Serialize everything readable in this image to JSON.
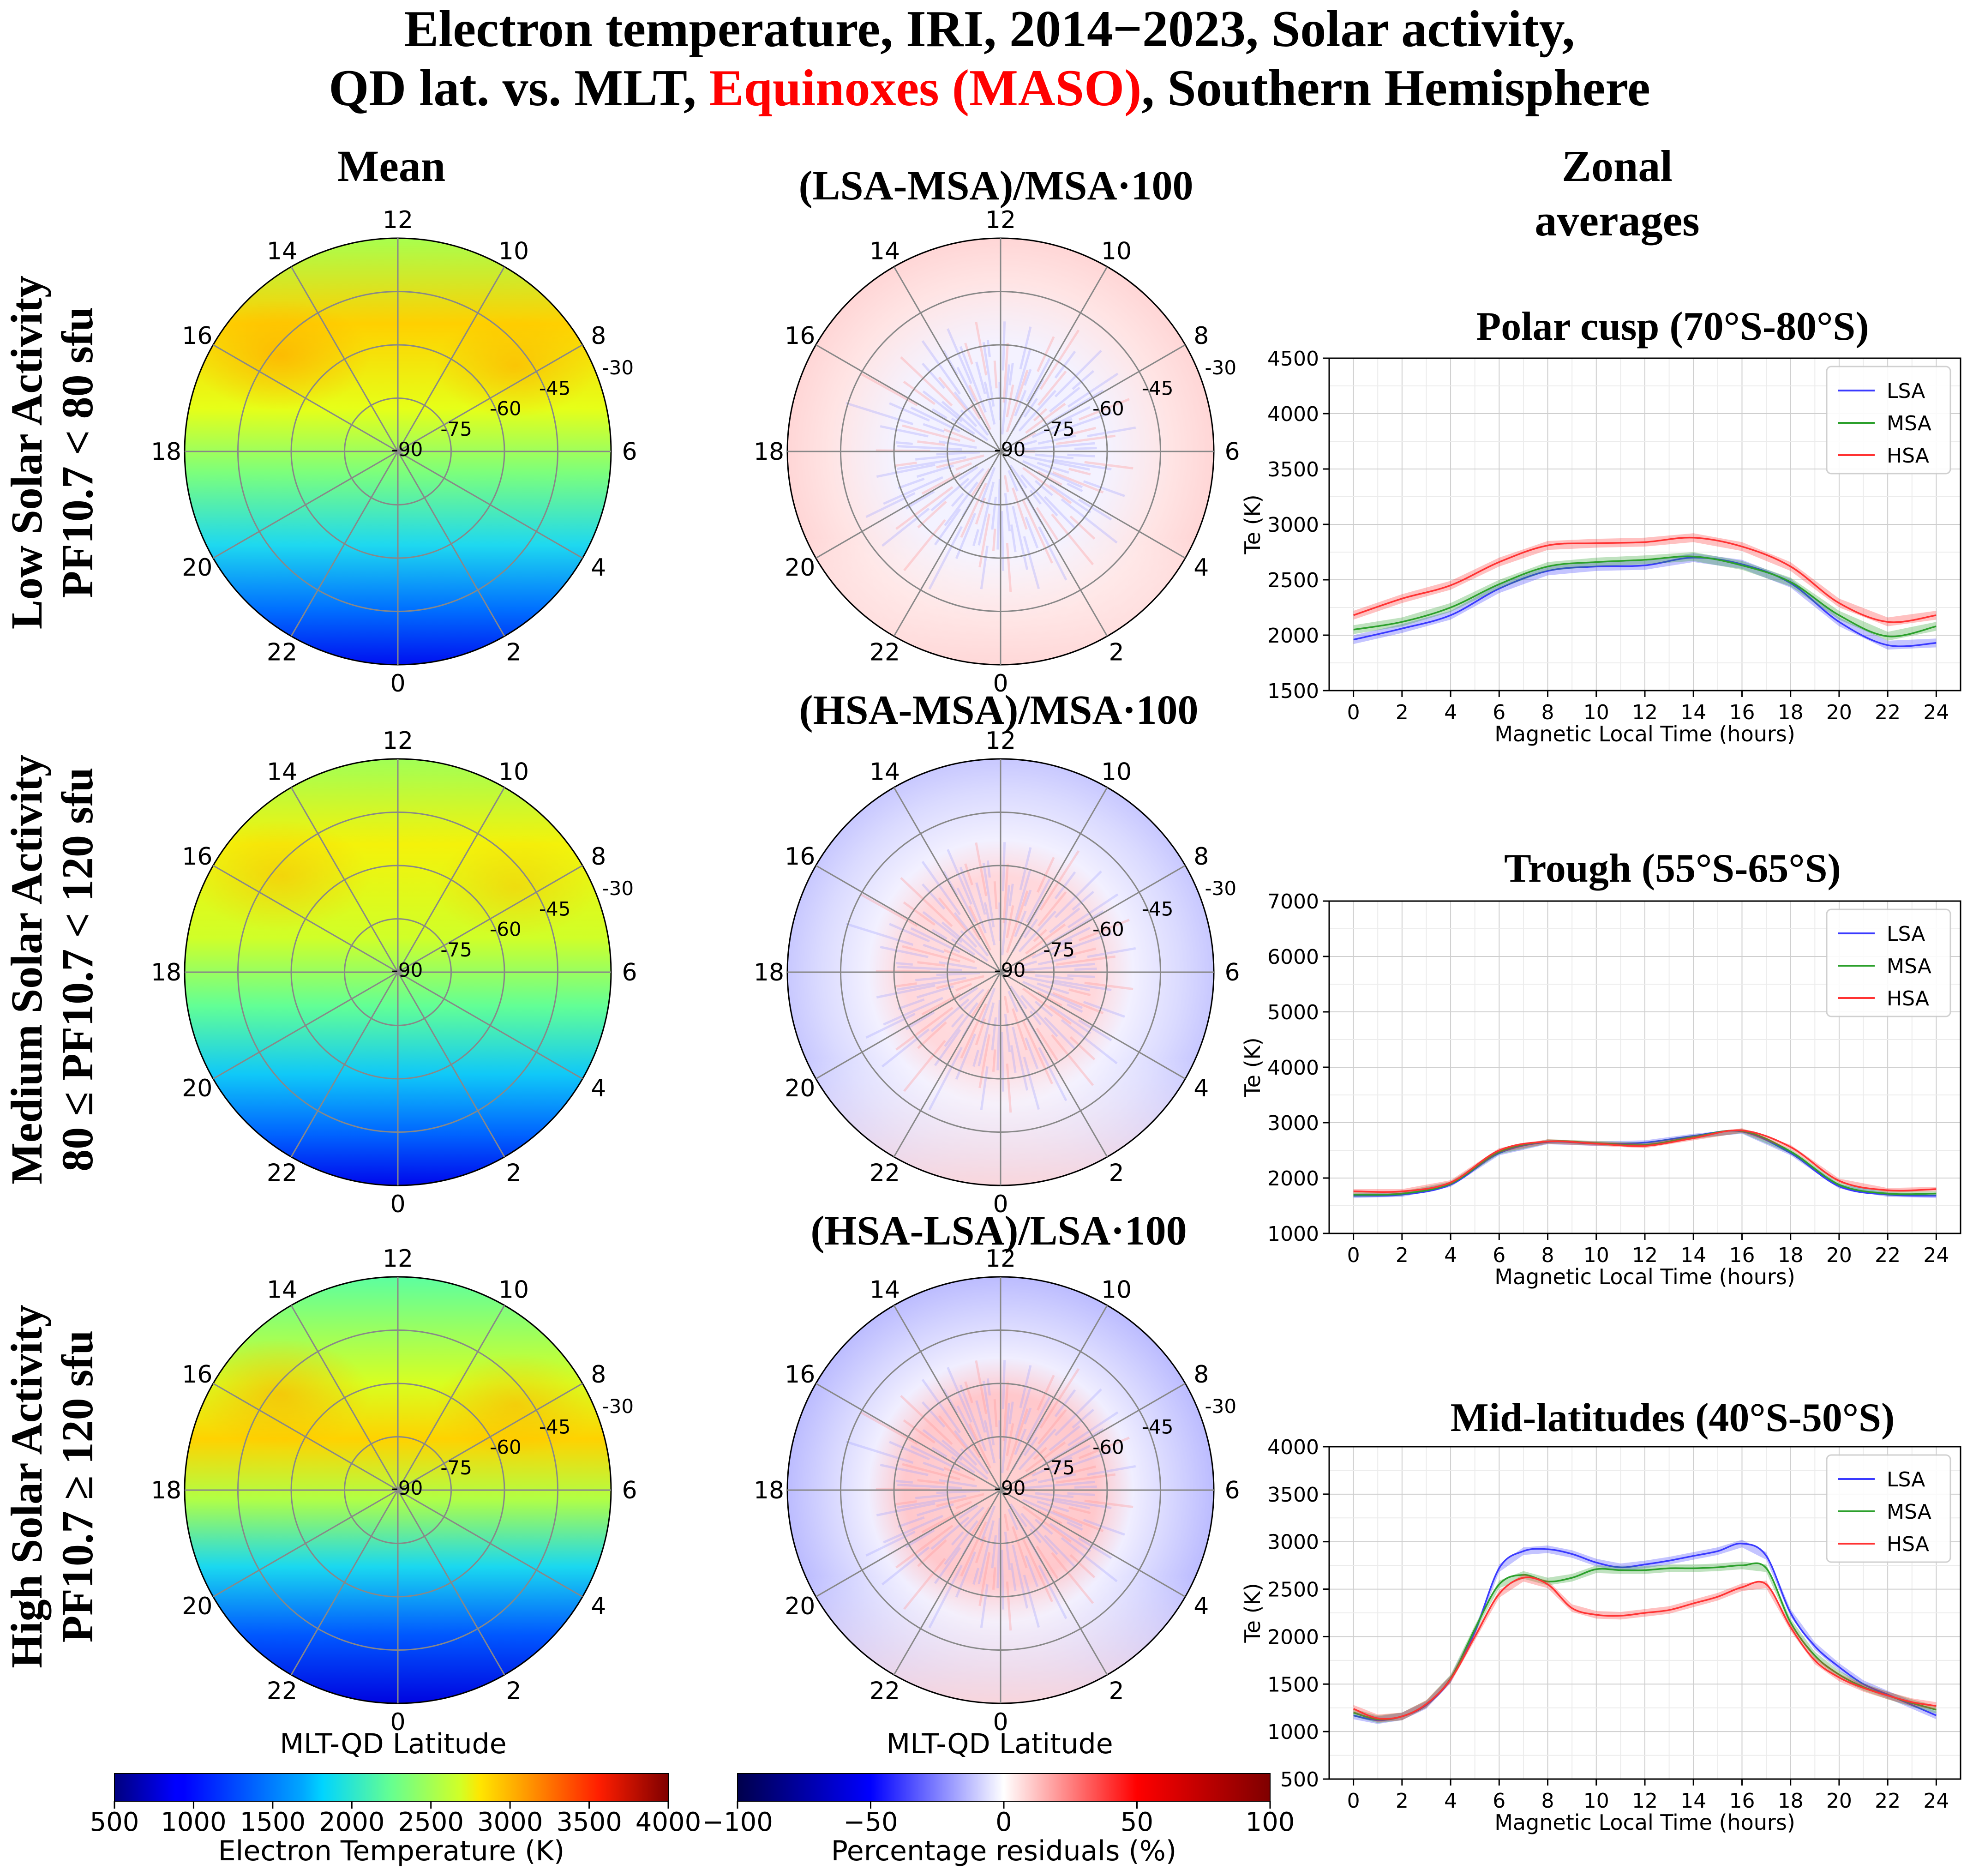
{
  "title": {
    "line1": "Electron temperature, IRI, 2014−2023, Solar activity,",
    "line2_pre": "QD lat. vs. MLT, ",
    "line2_red": "Equinoxes (MASO)",
    "line2_post": ", Southern Hemisphere",
    "red_color": "#ff0000"
  },
  "column_titles": {
    "mean": "Mean",
    "residual_low": "(LSA-MSA)/MSA·100",
    "residual_med": "(HSA-MSA)/MSA·100",
    "residual_high": "(HSA-LSA)/LSA·100",
    "zonal_line1": "Zonal",
    "zonal_line2": "averages"
  },
  "row_labels": [
    {
      "line1": "Low Solar Activity",
      "line2": "PF10.7 < 80 sfu"
    },
    {
      "line1": "Medium Solar Activity",
      "line2": "80 ≤ PF10.7 < 120 sfu"
    },
    {
      "line1": "High Solar Activity",
      "line2": "PF10.7 ≥ 120 sfu"
    }
  ],
  "polar_axes": {
    "mlt_labels": [
      "12",
      "14",
      "16",
      "18",
      "20",
      "22",
      "0",
      "2",
      "4",
      "6",
      "8",
      "10"
    ],
    "lat_labels": [
      "-90",
      "-75",
      "-60",
      "-45",
      "-30"
    ],
    "xlabel": "MLT-QD Latitude"
  },
  "colorbars": {
    "temperature": {
      "ticks": [
        "500",
        "1000",
        "1500",
        "2000",
        "2500",
        "3000",
        "3500",
        "4000"
      ],
      "label": "Electron Temperature (K)",
      "range": [
        500,
        4000
      ]
    },
    "residual": {
      "ticks": [
        "−100",
        "−50",
        "0",
        "50",
        "100"
      ],
      "label": "Percentage residuals (%)",
      "range": [
        -100,
        100
      ]
    }
  },
  "series_colors": {
    "LSA": "#3a3aff",
    "MSA": "#2ca02c",
    "HSA": "#ff3333"
  },
  "chart_data": [
    {
      "type": "line",
      "title": "Polar cusp (70°S-80°S)",
      "xlabel": "Magnetic Local Time (hours)",
      "ylabel": "Te (K)",
      "xlim": [
        -1,
        25
      ],
      "ylim": [
        1500,
        4500
      ],
      "yticks": [
        1500,
        2000,
        2500,
        3000,
        3500,
        4000,
        4500
      ],
      "xticks": [
        0,
        2,
        4,
        6,
        8,
        10,
        12,
        14,
        16,
        18,
        20,
        22,
        24
      ],
      "x": [
        0,
        2,
        4,
        6,
        8,
        10,
        12,
        14,
        16,
        18,
        20,
        22,
        24
      ],
      "series": [
        {
          "name": "LSA",
          "values": [
            1960,
            2060,
            2180,
            2420,
            2580,
            2620,
            2630,
            2700,
            2640,
            2470,
            2120,
            1910,
            1930
          ]
        },
        {
          "name": "MSA",
          "values": [
            2050,
            2120,
            2250,
            2460,
            2620,
            2660,
            2680,
            2710,
            2630,
            2480,
            2180,
            1990,
            2080
          ]
        },
        {
          "name": "HSA",
          "values": [
            2180,
            2330,
            2450,
            2660,
            2810,
            2830,
            2840,
            2880,
            2800,
            2620,
            2290,
            2120,
            2180
          ]
        }
      ],
      "legend": "top-right"
    },
    {
      "type": "line",
      "title": "Trough (55°S-65°S)",
      "xlabel": "Magnetic Local Time (hours)",
      "ylabel": "Te (K)",
      "xlim": [
        -1,
        25
      ],
      "ylim": [
        1000,
        7000
      ],
      "yticks": [
        1000,
        2000,
        3000,
        4000,
        5000,
        6000,
        7000
      ],
      "xticks": [
        0,
        2,
        4,
        6,
        8,
        10,
        12,
        14,
        16,
        18,
        20,
        22,
        24
      ],
      "x": [
        0,
        2,
        4,
        6,
        8,
        10,
        12,
        14,
        16,
        18,
        20,
        22,
        24
      ],
      "series": [
        {
          "name": "LSA",
          "values": [
            1680,
            1700,
            1880,
            2450,
            2650,
            2620,
            2640,
            2760,
            2840,
            2450,
            1850,
            1700,
            1680
          ]
        },
        {
          "name": "MSA",
          "values": [
            1700,
            1720,
            1900,
            2470,
            2660,
            2630,
            2600,
            2740,
            2850,
            2480,
            1880,
            1720,
            1720
          ]
        },
        {
          "name": "HSA",
          "values": [
            1760,
            1760,
            1920,
            2500,
            2660,
            2620,
            2580,
            2720,
            2860,
            2560,
            1950,
            1780,
            1800
          ]
        }
      ],
      "legend": "top-right"
    },
    {
      "type": "line",
      "title": "Mid-latitudes (40°S-50°S)",
      "xlabel": "Magnetic Local Time (hours)",
      "ylabel": "Te (K)",
      "xlim": [
        -1,
        25
      ],
      "ylim": [
        500,
        4000
      ],
      "yticks": [
        500,
        1000,
        1500,
        2000,
        2500,
        3000,
        3500,
        4000
      ],
      "xticks": [
        0,
        2,
        4,
        6,
        8,
        10,
        12,
        14,
        16,
        18,
        20,
        22,
        24
      ],
      "x": [
        0,
        1,
        2,
        3,
        4,
        5,
        6,
        7,
        8,
        9,
        10,
        11,
        12,
        13,
        14,
        15,
        16,
        17,
        18,
        19,
        20,
        21,
        22,
        23,
        24
      ],
      "series": [
        {
          "name": "LSA",
          "values": [
            1170,
            1120,
            1160,
            1280,
            1550,
            2050,
            2720,
            2900,
            2920,
            2870,
            2780,
            2730,
            2760,
            2800,
            2850,
            2900,
            2980,
            2850,
            2250,
            1900,
            1680,
            1500,
            1390,
            1280,
            1170
          ]
        },
        {
          "name": "MSA",
          "values": [
            1200,
            1130,
            1160,
            1290,
            1560,
            2080,
            2550,
            2650,
            2580,
            2620,
            2710,
            2700,
            2700,
            2720,
            2720,
            2730,
            2750,
            2720,
            2150,
            1800,
            1600,
            1470,
            1380,
            1300,
            1230
          ]
        },
        {
          "name": "HSA",
          "values": [
            1240,
            1140,
            1160,
            1290,
            1550,
            2000,
            2450,
            2620,
            2550,
            2300,
            2230,
            2220,
            2250,
            2280,
            2350,
            2420,
            2520,
            2550,
            2100,
            1750,
            1570,
            1460,
            1380,
            1310,
            1270
          ]
        }
      ],
      "legend": "top-right"
    }
  ]
}
